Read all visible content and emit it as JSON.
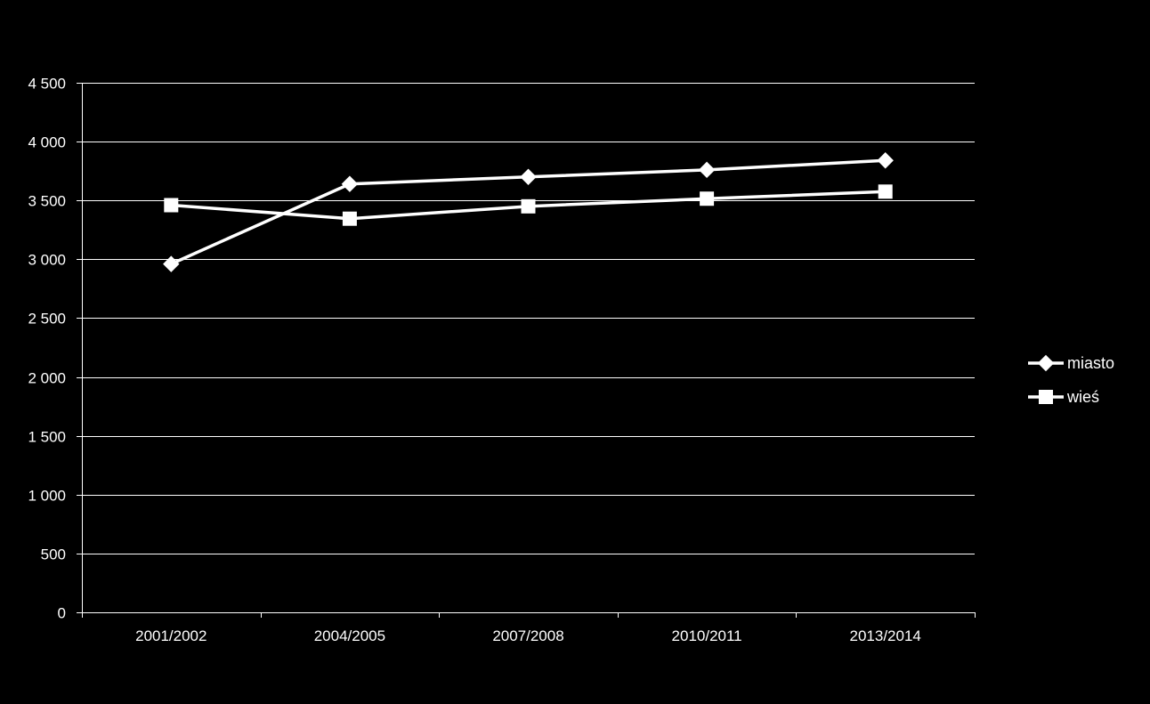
{
  "colors": {
    "background": "#000000",
    "foreground": "#ffffff"
  },
  "chart_data": {
    "type": "line",
    "title": "",
    "xlabel": "",
    "ylabel": "",
    "categories": [
      "2001/2002",
      "2004/2005",
      "2007/2008",
      "2010/2011",
      "2013/2014"
    ],
    "ylim": [
      0,
      4500
    ],
    "yticks": [
      0,
      500,
      1000,
      1500,
      2000,
      2500,
      3000,
      3500,
      4000,
      4500
    ],
    "ytick_labels": [
      "0",
      "500",
      "1 000",
      "1 500",
      "2 000",
      "2 500",
      "3 000",
      "3 500",
      "4 000",
      "4 500"
    ],
    "grid": true,
    "legend_position": "right",
    "series": [
      {
        "name": "miasto",
        "marker": "diamond",
        "values": [
          2960,
          3640,
          3700,
          3760,
          3840
        ]
      },
      {
        "name": "wieś",
        "marker": "square",
        "values": [
          3460,
          3345,
          3450,
          3515,
          3575
        ]
      }
    ]
  }
}
